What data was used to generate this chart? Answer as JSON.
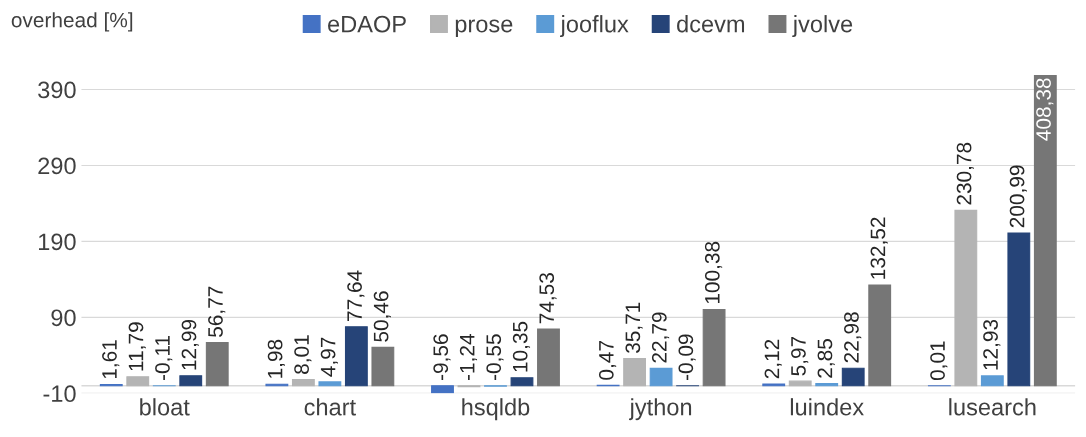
{
  "chart_data": {
    "type": "bar",
    "ylabel": "overhead [%]",
    "categories": [
      "bloat",
      "chart",
      "hsqldb",
      "jython",
      "luindex",
      "lusearch"
    ],
    "series": [
      {
        "name": "eDAOP",
        "color": "#4472c4",
        "values": [
          1.61,
          1.98,
          -9.56,
          0.47,
          2.12,
          0.01
        ],
        "value_labels": [
          "1,61",
          "1,98",
          "-9,56",
          "0,47",
          "2,12",
          "0,01"
        ]
      },
      {
        "name": "prose",
        "color": "#b4b4b4",
        "values": [
          11.79,
          8.01,
          -1.24,
          35.71,
          5.97,
          230.78
        ],
        "value_labels": [
          "11,79",
          "8,01",
          "-1,24",
          "35,71",
          "5,97",
          "230,78"
        ]
      },
      {
        "name": "jooflux",
        "color": "#5b9bd5",
        "values": [
          -0.11,
          4.97,
          -0.55,
          22.79,
          2.85,
          12.93
        ],
        "value_labels": [
          "-0,11",
          "4,97",
          "-0,55",
          "22,79",
          "2,85",
          "12,93"
        ]
      },
      {
        "name": "dcevm",
        "color": "#264478",
        "values": [
          12.99,
          77.64,
          10.35,
          -0.09,
          22.98,
          200.99
        ],
        "value_labels": [
          "12,99",
          "77,64",
          "10,35",
          "-0,09",
          "22,98",
          "200,99"
        ]
      },
      {
        "name": "jvolve",
        "color": "#767676",
        "values": [
          56.77,
          50.46,
          74.53,
          100.38,
          132.52,
          408.38
        ],
        "value_labels": [
          "56,77",
          "50,46",
          "74,53",
          "100,38",
          "132,52",
          "408,38"
        ]
      }
    ],
    "ylim": [
      -10,
      410
    ],
    "yticks": [
      -10,
      90,
      190,
      290,
      390
    ],
    "grid": "y",
    "legend": "top"
  }
}
